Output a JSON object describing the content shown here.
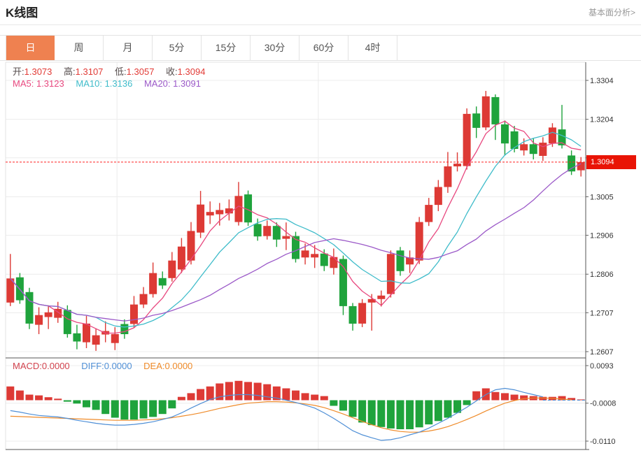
{
  "header": {
    "title": "K线图",
    "link": "基本面分析>"
  },
  "tabs": {
    "items": [
      {
        "label": "日",
        "selected": true
      },
      {
        "label": "周",
        "selected": false
      },
      {
        "label": "月",
        "selected": false
      },
      {
        "label": "5分",
        "selected": false
      },
      {
        "label": "15分",
        "selected": false
      },
      {
        "label": "30分",
        "selected": false
      },
      {
        "label": "60分",
        "selected": false
      },
      {
        "label": "4时",
        "selected": false
      }
    ]
  },
  "legend": {
    "open_label": "开:",
    "open_value": "1.3073",
    "high_label": "高:",
    "high_value": "1.3107",
    "low_label": "低:",
    "low_value": "1.3057",
    "close_label": "收:",
    "close_value": "1.3094",
    "ma5_label": "MA5:",
    "ma5_value": "1.3123",
    "ma10_label": "MA10:",
    "ma10_value": "1.3136",
    "ma20_label": "MA20:",
    "ma20_value": "1.3091"
  },
  "macd_legend": {
    "macd_label": "MACD:",
    "macd_value": "0.0000",
    "diff_label": "DIFF:",
    "diff_value": "0.0000",
    "dea_label": "DEA:",
    "dea_value": "0.0000"
  },
  "price_marker": {
    "value": "1.3094"
  },
  "colors": {
    "up": "#dd3a35",
    "down": "#1fa33c",
    "ma5": "#e8487f",
    "ma10": "#3fbcca",
    "ma20": "#9b59c8",
    "diff": "#4f8fd6",
    "dea": "#ef8b2a",
    "macd_text": "#d2434e",
    "price_line": "#ff2222",
    "badge_bg": "#e91405",
    "badge_text": "#ffffff",
    "accent": "#ef8150",
    "grid": "#ececec",
    "label": "#333333",
    "ohlc_label": "#554c4c",
    "ohlc_value": "#e23b36",
    "link": "#999999"
  },
  "chart_data": {
    "type": "candlestick+macd",
    "x_gridlines": [
      0.192,
      0.539,
      0.859
    ],
    "main": {
      "title": "K线图 日线",
      "axis_max": 1.3304,
      "axis_min": 1.2607,
      "ticks": [
        1.3304,
        1.3204,
        1.3105,
        1.3005,
        1.2906,
        1.2806,
        1.2707,
        1.2607
      ],
      "current_price": 1.3094,
      "ma_periods": [
        5,
        10,
        20
      ],
      "candles": [
        [
          1.2733,
          1.2858,
          1.2724,
          1.2795
        ],
        [
          1.2798,
          1.2809,
          1.273,
          1.2739
        ],
        [
          1.276,
          1.2771,
          1.2665,
          1.2679
        ],
        [
          1.2676,
          1.2721,
          1.2652,
          1.2701
        ],
        [
          1.2696,
          1.2726,
          1.2665,
          1.2708
        ],
        [
          1.2694,
          1.2735,
          1.2681,
          1.2717
        ],
        [
          1.2714,
          1.2726,
          1.2643,
          1.2652
        ],
        [
          1.2654,
          1.2676,
          1.2613,
          1.2633
        ],
        [
          1.2631,
          1.2699,
          1.2616,
          1.2679
        ],
        [
          1.2625,
          1.2667,
          1.2609,
          1.2649
        ],
        [
          1.2651,
          1.2685,
          1.2631,
          1.266
        ],
        [
          1.2629,
          1.267,
          1.2611,
          1.2652
        ],
        [
          1.2678,
          1.269,
          1.264,
          1.2652
        ],
        [
          1.2678,
          1.275,
          1.2669,
          1.2728
        ],
        [
          1.2728,
          1.2773,
          1.2719,
          1.2755
        ],
        [
          1.2755,
          1.2836,
          1.2746,
          1.2809
        ],
        [
          1.2796,
          1.2813,
          1.2768,
          1.2777
        ],
        [
          1.2796,
          1.2863,
          1.2787,
          1.2841
        ],
        [
          1.2818,
          1.2899,
          1.2809,
          1.2877
        ],
        [
          1.2841,
          1.294,
          1.2831,
          1.2917
        ],
        [
          1.2913,
          1.302,
          1.2899,
          1.2985
        ],
        [
          1.2957,
          1.2993,
          1.2935,
          1.2966
        ],
        [
          1.296,
          1.2989,
          1.2931,
          1.2971
        ],
        [
          1.2962,
          1.2998,
          1.2944,
          1.2975
        ],
        [
          1.294,
          1.3043,
          1.2931,
          1.3007
        ],
        [
          1.3011,
          1.3021,
          1.293,
          1.2939
        ],
        [
          1.2935,
          1.2949,
          1.2892,
          1.2903
        ],
        [
          1.2904,
          1.2944,
          1.2895,
          1.293
        ],
        [
          1.293,
          1.2939,
          1.2876,
          1.2895
        ],
        [
          1.2897,
          1.2939,
          1.2868,
          1.2904
        ],
        [
          1.2904,
          1.2915,
          1.2836,
          1.2845
        ],
        [
          1.2849,
          1.2885,
          1.2831,
          1.2867
        ],
        [
          1.2849,
          1.2881,
          1.2822,
          1.2858
        ],
        [
          1.2859,
          1.287,
          1.2814,
          1.2827
        ],
        [
          1.2822,
          1.2872,
          1.2805,
          1.285
        ],
        [
          1.2845,
          1.2854,
          1.2701,
          1.2724
        ],
        [
          1.2724,
          1.2732,
          1.2661,
          1.2679
        ],
        [
          1.2679,
          1.2742,
          1.267,
          1.2732
        ],
        [
          1.2733,
          1.2755,
          1.2661,
          1.2742
        ],
        [
          1.2742,
          1.2764,
          1.2723,
          1.2751
        ],
        [
          1.2755,
          1.2867,
          1.2746,
          1.2858
        ],
        [
          1.2867,
          1.2876,
          1.2802,
          1.2814
        ],
        [
          1.2831,
          1.2867,
          1.2809,
          1.2849
        ],
        [
          1.2841,
          1.2953,
          1.2832,
          1.294
        ],
        [
          1.294,
          1.3002,
          1.293,
          1.2984
        ],
        [
          1.2984,
          1.3048,
          1.2968,
          1.303
        ],
        [
          1.303,
          1.312,
          1.3015,
          1.3083
        ],
        [
          1.3083,
          1.3119,
          1.307,
          1.309
        ],
        [
          1.3084,
          1.3232,
          1.3075,
          1.3218
        ],
        [
          1.3219,
          1.3237,
          1.3156,
          1.3182
        ],
        [
          1.3183,
          1.3277,
          1.3176,
          1.3263
        ],
        [
          1.3261,
          1.3268,
          1.3151,
          1.3191
        ],
        [
          1.3191,
          1.3201,
          1.3111,
          1.3142
        ],
        [
          1.3173,
          1.3187,
          1.3119,
          1.3128
        ],
        [
          1.3124,
          1.3155,
          1.3111,
          1.314
        ],
        [
          1.314,
          1.3155,
          1.3101,
          1.3115
        ],
        [
          1.311,
          1.3158,
          1.3097,
          1.3144
        ],
        [
          1.3142,
          1.3194,
          1.3133,
          1.3183
        ],
        [
          1.3178,
          1.3241,
          1.3129,
          1.3137
        ],
        [
          1.3111,
          1.3124,
          1.3061,
          1.307
        ],
        [
          1.3073,
          1.3107,
          1.3057,
          1.3094
        ]
      ]
    },
    "macd": {
      "axis_max": 0.0093,
      "axis_min": -0.011,
      "ticks": [
        0.0093,
        -0.0008,
        -0.011
      ],
      "hist": [
        0.0037,
        0.0026,
        0.0015,
        0.0013,
        0.0008,
        0.0004,
        -0.0004,
        -0.0009,
        -0.0019,
        -0.0026,
        -0.0037,
        -0.0047,
        -0.0052,
        -0.0052,
        -0.0049,
        -0.0045,
        -0.0037,
        -0.0022,
        0.0009,
        0.0019,
        0.003,
        0.0037,
        0.0045,
        0.0049,
        0.0052,
        0.0049,
        0.0047,
        0.0043,
        0.0037,
        0.0032,
        0.0026,
        0.0019,
        0.0015,
        0.0011,
        -0.0015,
        -0.0028,
        -0.0045,
        -0.006,
        -0.0067,
        -0.0072,
        -0.0076,
        -0.0078,
        -0.0078,
        -0.0073,
        -0.0065,
        -0.0056,
        -0.0047,
        -0.0034,
        -0.0013,
        0.0024,
        0.0032,
        0.0022,
        0.0019,
        0.0015,
        0.0013,
        0.0011,
        0.0009,
        0.0009,
        0.0011,
        0.0006,
        0.0002
      ],
      "diff": [
        -0.0028,
        -0.0032,
        -0.0037,
        -0.0041,
        -0.0043,
        -0.0045,
        -0.0049,
        -0.0054,
        -0.0058,
        -0.0062,
        -0.0065,
        -0.0067,
        -0.0067,
        -0.0065,
        -0.0062,
        -0.0058,
        -0.0052,
        -0.0045,
        -0.0034,
        -0.0021,
        -0.0009,
        0.0002,
        0.0009,
        0.0013,
        0.0015,
        0.0015,
        0.0013,
        0.0009,
        0.0006,
        0.0,
        -0.0006,
        -0.0013,
        -0.0021,
        -0.0034,
        -0.0049,
        -0.0065,
        -0.0082,
        -0.0093,
        -0.0101,
        -0.0108,
        -0.0106,
        -0.0101,
        -0.0093,
        -0.0086,
        -0.0075,
        -0.0062,
        -0.0049,
        -0.0034,
        -0.0019,
        -0.0002,
        0.0015,
        0.0028,
        0.0032,
        0.0028,
        0.0021,
        0.0015,
        0.0009,
        0.0006,
        0.0004,
        0.0002,
        0.0
      ],
      "dea": [
        -0.0043,
        -0.0044,
        -0.0045,
        -0.0046,
        -0.0047,
        -0.0048,
        -0.0049,
        -0.005,
        -0.0051,
        -0.0052,
        -0.0053,
        -0.0054,
        -0.0054,
        -0.0054,
        -0.0053,
        -0.0052,
        -0.005,
        -0.0047,
        -0.0043,
        -0.0039,
        -0.0034,
        -0.0028,
        -0.0022,
        -0.0017,
        -0.0012,
        -0.0008,
        -0.0006,
        -0.0004,
        -0.0004,
        -0.0005,
        -0.0007,
        -0.001,
        -0.0014,
        -0.002,
        -0.0028,
        -0.0037,
        -0.0047,
        -0.0057,
        -0.0066,
        -0.0074,
        -0.008,
        -0.0084,
        -0.0086,
        -0.0086,
        -0.0083,
        -0.0078,
        -0.0071,
        -0.0062,
        -0.0052,
        -0.0041,
        -0.0029,
        -0.0018,
        -0.0008,
        -0.0001,
        0.0004,
        0.0006,
        0.0006,
        0.0005,
        0.0003,
        0.0001,
        0.0
      ]
    }
  }
}
